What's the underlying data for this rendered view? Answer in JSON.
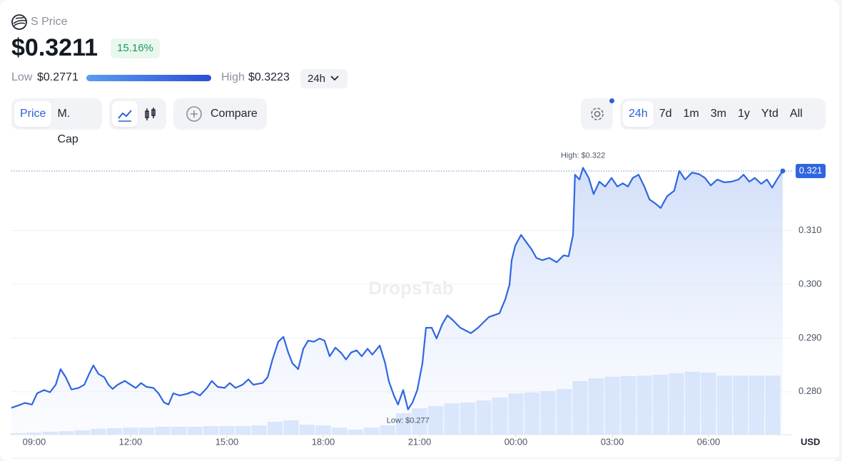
{
  "header": {
    "name": "S Price",
    "price": "$0.3211",
    "change": "15.16%",
    "low_label": "Low",
    "low": "$0.2771",
    "high_label": "High",
    "high": "$0.3223",
    "period": "24h"
  },
  "controls": {
    "views": [
      "Price",
      "M. Cap"
    ],
    "compare": "Compare",
    "ranges": [
      "24h",
      "7d",
      "1m",
      "3m",
      "1y",
      "Ytd",
      "All"
    ]
  },
  "chart_data": {
    "type": "line",
    "color": "#2f66e0",
    "watermark": "DropsTab",
    "high_annotation": "High: $0.322",
    "low_annotation": "Low: $0.277",
    "current": {
      "value": 0.3211,
      "label": "0.321"
    },
    "y_unit": "USD",
    "x": [
      -0.71,
      -0.51,
      -0.29,
      -0.07,
      0.09,
      0.31,
      0.49,
      0.67,
      0.82,
      0.98,
      1.16,
      1.38,
      1.56,
      1.71,
      1.84,
      2.0,
      2.18,
      2.31,
      2.44,
      2.6,
      2.82,
      3.0,
      3.16,
      3.33,
      3.49,
      3.71,
      3.87,
      4.04,
      4.18,
      4.33,
      4.53,
      4.76,
      4.93,
      5.16,
      5.38,
      5.53,
      5.71,
      5.93,
      6.09,
      6.27,
      6.49,
      6.67,
      6.82,
      7.11,
      7.27,
      7.42,
      7.6,
      7.76,
      7.91,
      8.04,
      8.22,
      8.38,
      8.53,
      8.71,
      8.89,
      9.04,
      9.2,
      9.38,
      9.56,
      9.71,
      9.87,
      10.04,
      10.2,
      10.38,
      10.53,
      10.76,
      10.93,
      11.04,
      11.2,
      11.33,
      11.49,
      11.64,
      11.78,
      11.93,
      12.09,
      12.2,
      12.38,
      12.53,
      12.71,
      12.87,
      13.04,
      13.27,
      13.6,
      13.82,
      14.16,
      14.49,
      14.67,
      14.8,
      14.87,
      14.98,
      15.16,
      15.33,
      15.49,
      15.64,
      15.82,
      16.04,
      16.27,
      16.49,
      16.64,
      16.78,
      16.84,
      16.98,
      17.09,
      17.27,
      17.42,
      17.6,
      17.78,
      17.98,
      18.16,
      18.33,
      18.49,
      18.64,
      18.82,
      19.0,
      19.16,
      19.33,
      19.51,
      19.71,
      19.93,
      20.09,
      20.27,
      20.49,
      20.71,
      20.89,
      21.07,
      21.27,
      21.49,
      21.71,
      21.93,
      22.09,
      22.27,
      22.44,
      22.64,
      22.82,
      22.98,
      23.16,
      23.31
    ],
    "values": [
      0.277,
      0.2774,
      0.2779,
      0.2776,
      0.2797,
      0.2803,
      0.2799,
      0.2813,
      0.2842,
      0.2827,
      0.2804,
      0.2807,
      0.2813,
      0.2833,
      0.2849,
      0.2833,
      0.2827,
      0.2813,
      0.2805,
      0.2813,
      0.282,
      0.2813,
      0.2807,
      0.2816,
      0.2809,
      0.2807,
      0.2797,
      0.278,
      0.2776,
      0.2797,
      0.2793,
      0.2796,
      0.28,
      0.2793,
      0.2807,
      0.282,
      0.2809,
      0.2807,
      0.2816,
      0.2807,
      0.2813,
      0.2823,
      0.2813,
      0.2816,
      0.2827,
      0.286,
      0.2893,
      0.2902,
      0.2873,
      0.2853,
      0.2842,
      0.288,
      0.2895,
      0.2893,
      0.2899,
      0.2895,
      0.2866,
      0.2882,
      0.2872,
      0.286,
      0.2873,
      0.2877,
      0.2866,
      0.288,
      0.2869,
      0.2886,
      0.2853,
      0.282,
      0.2793,
      0.2776,
      0.2803,
      0.2767,
      0.278,
      0.2803,
      0.2853,
      0.2919,
      0.2919,
      0.2899,
      0.2926,
      0.2942,
      0.2933,
      0.2919,
      0.2909,
      0.2919,
      0.2939,
      0.2946,
      0.2972,
      0.2999,
      0.3045,
      0.3072,
      0.3092,
      0.3078,
      0.3065,
      0.3049,
      0.3045,
      0.3049,
      0.3041,
      0.3054,
      0.3052,
      0.3092,
      0.3204,
      0.3195,
      0.3217,
      0.3198,
      0.3168,
      0.3191,
      0.3182,
      0.3198,
      0.3182,
      0.3188,
      0.3182,
      0.3198,
      0.3204,
      0.3182,
      0.3158,
      0.3151,
      0.3142,
      0.3164,
      0.3174,
      0.3211,
      0.3195,
      0.3208,
      0.3205,
      0.3198,
      0.3184,
      0.3195,
      0.319,
      0.3191,
      0.3195,
      0.3204,
      0.3191,
      0.3198,
      0.3187,
      0.3195,
      0.318,
      0.3198,
      0.3211
    ],
    "volume": {
      "color": "#c9dcfa",
      "x": [
        -0.5,
        0,
        0.5,
        1,
        1.5,
        2,
        2.5,
        3,
        3.5,
        4,
        4.5,
        5,
        5.5,
        6,
        6.5,
        7,
        7.5,
        8,
        8.5,
        9,
        9.5,
        10,
        10.5,
        11,
        11.5,
        12,
        12.5,
        13,
        13.5,
        14,
        14.5,
        15,
        15.5,
        16,
        16.5,
        17,
        17.5,
        18,
        18.5,
        19,
        19.5,
        20,
        20.5,
        21,
        21.5,
        22,
        22.5,
        23
      ],
      "values": [
        0.5,
        0.7,
        1.0,
        1.2,
        1.5,
        2.0,
        2.2,
        2.4,
        2.4,
        2.7,
        2.7,
        2.7,
        2.9,
        2.9,
        2.9,
        3.2,
        4.4,
        4.9,
        3.4,
        3.2,
        2.4,
        1.7,
        2.4,
        3.2,
        7.3,
        9.0,
        9.8,
        10.7,
        11.0,
        11.7,
        12.7,
        14.1,
        14.4,
        14.9,
        15.6,
        18.3,
        19.3,
        19.8,
        20.0,
        20.2,
        20.5,
        21.0,
        21.5,
        21.2,
        20.2,
        20.2,
        20.2,
        20.2
      ]
    },
    "xlim": [
      -0.71,
      23.6
    ],
    "ylim": [
      0.272,
      0.3264
    ],
    "y2lim": [
      0,
      100
    ],
    "xticks": [
      {
        "value": 0,
        "label": "09:00"
      },
      {
        "value": 3,
        "label": "12:00"
      },
      {
        "value": 6,
        "label": "15:00"
      },
      {
        "value": 9,
        "label": "18:00"
      },
      {
        "value": 12,
        "label": "21:00"
      },
      {
        "value": 15,
        "label": "00:00"
      },
      {
        "value": 18,
        "label": "03:00"
      },
      {
        "value": 21,
        "label": "06:00"
      }
    ],
    "yticks": [
      {
        "value": 0.28,
        "label": "0.280"
      },
      {
        "value": 0.29,
        "label": "0.290"
      },
      {
        "value": 0.3,
        "label": "0.300"
      },
      {
        "value": 0.31,
        "label": "0.310"
      }
    ],
    "grid": true
  }
}
